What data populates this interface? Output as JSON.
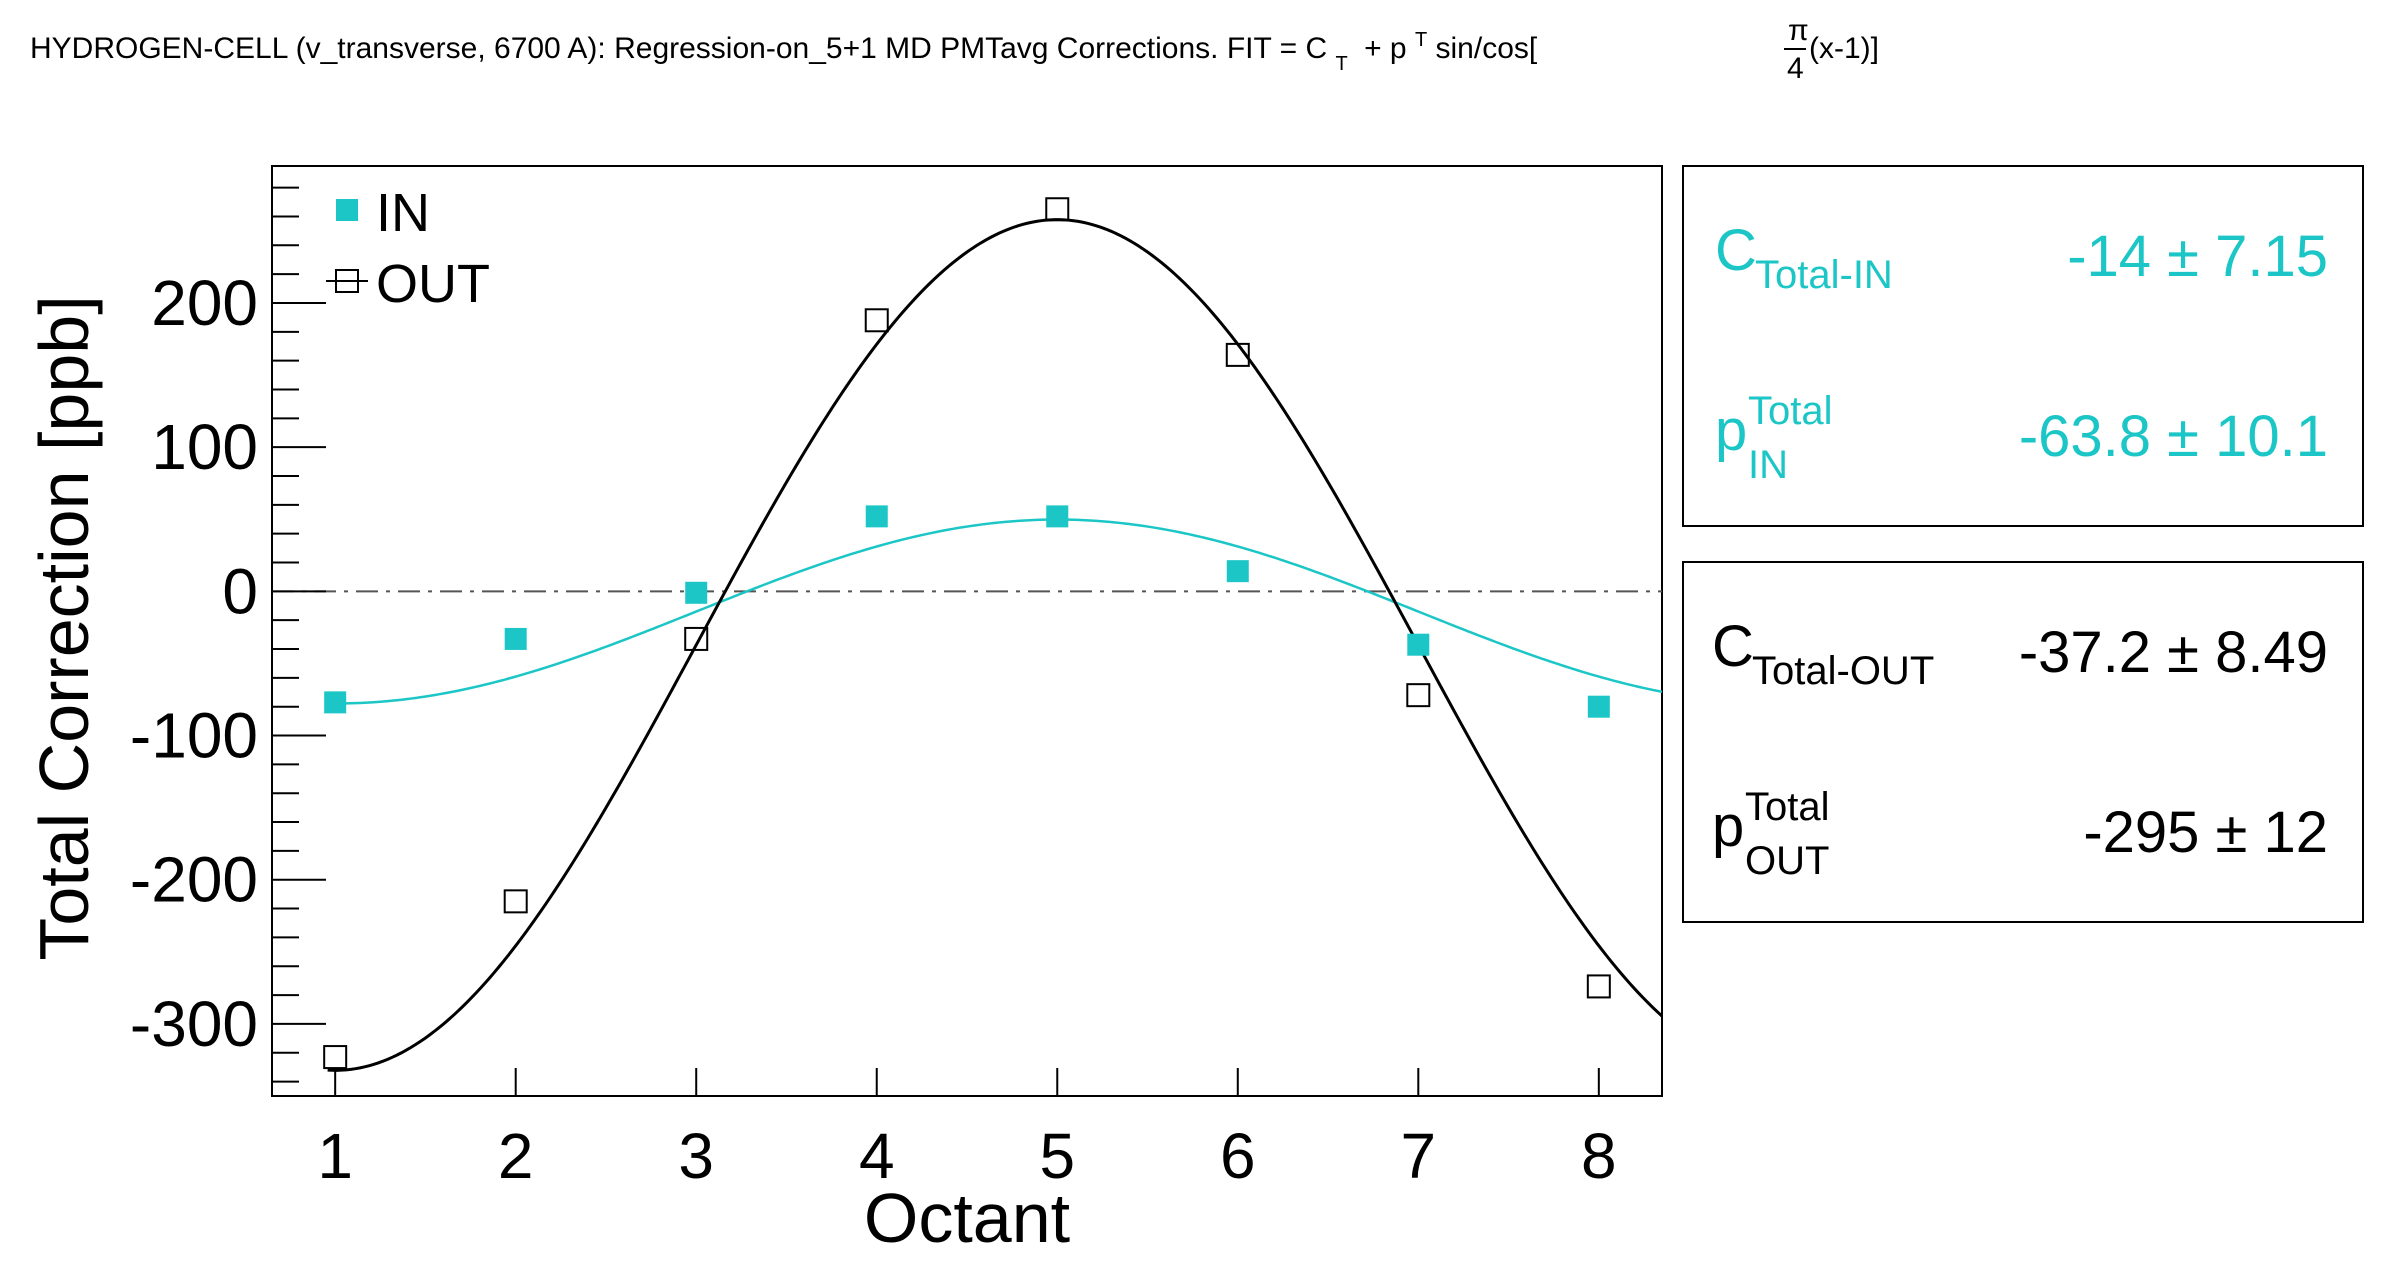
{
  "title": {
    "prefix": "HYDROGEN-CELL (v_transverse, 6700 A): Regression-on_5+1 MD PMTavg Corrections. FIT = C",
    "c_sub": "T",
    "mid": "+ p",
    "p_sup": "T",
    "after_p": "sin/cos[",
    "frac_num": "π",
    "frac_den": "4",
    "suffix": "(x-1)]"
  },
  "colors": {
    "in": "#1cc6c6",
    "out": "#000000",
    "axis": "#000000",
    "zero_line": "#555555"
  },
  "legend": {
    "in_label": "IN",
    "out_label": "OUT",
    "placement": "top-left"
  },
  "stats": {
    "in": [
      {
        "symbol": "C",
        "sub": "Total-IN",
        "sup": "",
        "value": "-14 ±  7.15"
      },
      {
        "symbol": "p",
        "sub": "IN",
        "sup": "Total",
        "value": "-63.8 ±  10.1"
      }
    ],
    "out": [
      {
        "symbol": "C",
        "sub": "Total-OUT",
        "sup": "",
        "value": "-37.2 ±  8.49"
      },
      {
        "symbol": "p",
        "sub": "OUT",
        "sup": "Total",
        "value": "-295 ±    12"
      }
    ]
  },
  "chart_data": {
    "type": "scatter",
    "title": "HYDROGEN-CELL (v_transverse, 6700 A): Regression-on_5+1 MD PMTavg Corrections. FIT = C_T + p^T sin/cos[π/4(x-1)]",
    "xlabel": "Octant",
    "ylabel": "Total Correction [ppb]",
    "xlim": [
      0.65,
      8.35
    ],
    "ylim": [
      -350,
      295
    ],
    "xticks": [
      1,
      2,
      3,
      4,
      5,
      6,
      7,
      8
    ],
    "yticks": [
      -300,
      -200,
      -100,
      0,
      100,
      200
    ],
    "grid": false,
    "reference_line": 0,
    "series": [
      {
        "name": "IN",
        "marker": "filled-square",
        "x": [
          1,
          2,
          3,
          4,
          5,
          6,
          7,
          8
        ],
        "y": [
          -77,
          -33,
          -1,
          52,
          52,
          14,
          -37,
          -80
        ],
        "fit": {
          "form": "C + p*cos(pi/4*(x-1))",
          "C": -14,
          "p": -63.8
        }
      },
      {
        "name": "OUT",
        "marker": "open-square",
        "x": [
          1,
          2,
          3,
          4,
          5,
          6,
          7,
          8
        ],
        "y": [
          -323,
          -215,
          -33,
          188,
          265,
          164,
          -72,
          -274
        ],
        "fit": {
          "form": "C + p*cos(pi/4*(x-1))",
          "C": -37.2,
          "p": -295
        }
      }
    ]
  }
}
